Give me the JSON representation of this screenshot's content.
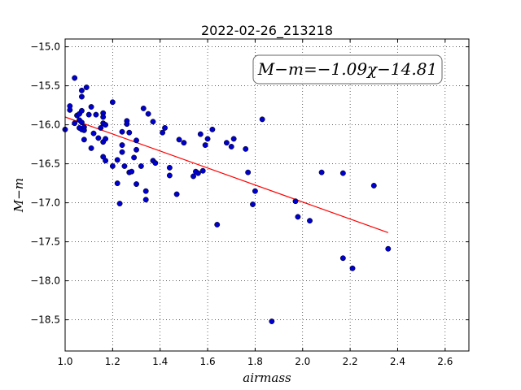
{
  "chart_data": {
    "type": "scatter",
    "title": "2022-02-26_213218",
    "xlabel": "airmass",
    "ylabel": "M−m",
    "annotation": "M−m=−1.09χ−14.81",
    "xlim": [
      1.0,
      2.7
    ],
    "ylim": [
      -14.9,
      -18.9
    ],
    "y_inverted": true,
    "grid": true,
    "x_ticks": [
      1.0,
      1.2,
      1.4,
      1.6,
      1.8,
      2.0,
      2.2,
      2.4,
      2.6
    ],
    "x_tick_labels": [
      "1.0",
      "1.2",
      "1.4",
      "1.6",
      "1.8",
      "2.0",
      "2.2",
      "2.4",
      "2.6"
    ],
    "y_ticks": [
      -15.0,
      -15.5,
      -16.0,
      -16.5,
      -17.0,
      -17.5,
      -18.0,
      -18.5
    ],
    "y_tick_labels": [
      "−15.0",
      "−15.5",
      "−16.0",
      "−16.5",
      "−17.0",
      "−17.5",
      "−18.0",
      "−18.5"
    ],
    "fit": {
      "slope": -1.09,
      "intercept": -14.81,
      "x_range": [
        1.0,
        2.36
      ],
      "color": "#ff0000"
    },
    "point_color": "#0000cc",
    "points": [
      [
        1.0,
        -16.06
      ],
      [
        1.02,
        -15.76
      ],
      [
        1.02,
        -15.81
      ],
      [
        1.04,
        -15.98
      ],
      [
        1.04,
        -15.4
      ],
      [
        1.05,
        -15.88
      ],
      [
        1.06,
        -15.86
      ],
      [
        1.06,
        -15.94
      ],
      [
        1.06,
        -16.04
      ],
      [
        1.07,
        -15.56
      ],
      [
        1.07,
        -15.64
      ],
      [
        1.07,
        -15.82
      ],
      [
        1.07,
        -15.97
      ],
      [
        1.07,
        -16.06
      ],
      [
        1.08,
        -16.03
      ],
      [
        1.08,
        -16.07
      ],
      [
        1.08,
        -16.19
      ],
      [
        1.09,
        -15.52
      ],
      [
        1.1,
        -15.87
      ],
      [
        1.11,
        -15.77
      ],
      [
        1.11,
        -16.3
      ],
      [
        1.12,
        -16.11
      ],
      [
        1.13,
        -15.87
      ],
      [
        1.14,
        -16.17
      ],
      [
        1.15,
        -16.04
      ],
      [
        1.16,
        -15.98
      ],
      [
        1.16,
        -16.22
      ],
      [
        1.16,
        -16.41
      ],
      [
        1.16,
        -15.85
      ],
      [
        1.16,
        -15.9
      ],
      [
        1.17,
        -16.46
      ],
      [
        1.17,
        -16.18
      ],
      [
        1.17,
        -16.0
      ],
      [
        1.2,
        -16.53
      ],
      [
        1.2,
        -15.71
      ],
      [
        1.22,
        -16.45
      ],
      [
        1.22,
        -16.75
      ],
      [
        1.23,
        -17.01
      ],
      [
        1.24,
        -16.09
      ],
      [
        1.24,
        -16.26
      ],
      [
        1.24,
        -16.35
      ],
      [
        1.25,
        -16.53
      ],
      [
        1.26,
        -15.95
      ],
      [
        1.26,
        -15.99
      ],
      [
        1.27,
        -16.61
      ],
      [
        1.27,
        -16.1
      ],
      [
        1.28,
        -16.6
      ],
      [
        1.29,
        -16.42
      ],
      [
        1.3,
        -16.76
      ],
      [
        1.3,
        -16.32
      ],
      [
        1.3,
        -16.2
      ],
      [
        1.32,
        -16.53
      ],
      [
        1.33,
        -15.79
      ],
      [
        1.34,
        -16.96
      ],
      [
        1.34,
        -16.85
      ],
      [
        1.35,
        -15.86
      ],
      [
        1.37,
        -16.46
      ],
      [
        1.37,
        -15.96
      ],
      [
        1.38,
        -16.49
      ],
      [
        1.41,
        -16.1
      ],
      [
        1.42,
        -16.04
      ],
      [
        1.44,
        -16.55
      ],
      [
        1.44,
        -16.65
      ],
      [
        1.47,
        -16.89
      ],
      [
        1.48,
        -16.19
      ],
      [
        1.5,
        -16.23
      ],
      [
        1.54,
        -16.66
      ],
      [
        1.55,
        -16.6
      ],
      [
        1.56,
        -16.62
      ],
      [
        1.57,
        -16.12
      ],
      [
        1.58,
        -16.59
      ],
      [
        1.59,
        -16.26
      ],
      [
        1.6,
        -16.18
      ],
      [
        1.62,
        -16.06
      ],
      [
        1.64,
        -17.28
      ],
      [
        1.68,
        -16.23
      ],
      [
        1.7,
        -16.28
      ],
      [
        1.71,
        -16.18
      ],
      [
        1.76,
        -16.31
      ],
      [
        1.77,
        -16.61
      ],
      [
        1.79,
        -17.02
      ],
      [
        1.8,
        -16.85
      ],
      [
        1.83,
        -15.93
      ],
      [
        1.87,
        -18.52
      ],
      [
        1.97,
        -16.98
      ],
      [
        1.98,
        -17.18
      ],
      [
        2.03,
        -17.23
      ],
      [
        2.08,
        -16.61
      ],
      [
        2.17,
        -17.71
      ],
      [
        2.17,
        -16.62
      ],
      [
        2.21,
        -17.84
      ],
      [
        2.3,
        -16.78
      ],
      [
        2.36,
        -17.59
      ]
    ]
  }
}
